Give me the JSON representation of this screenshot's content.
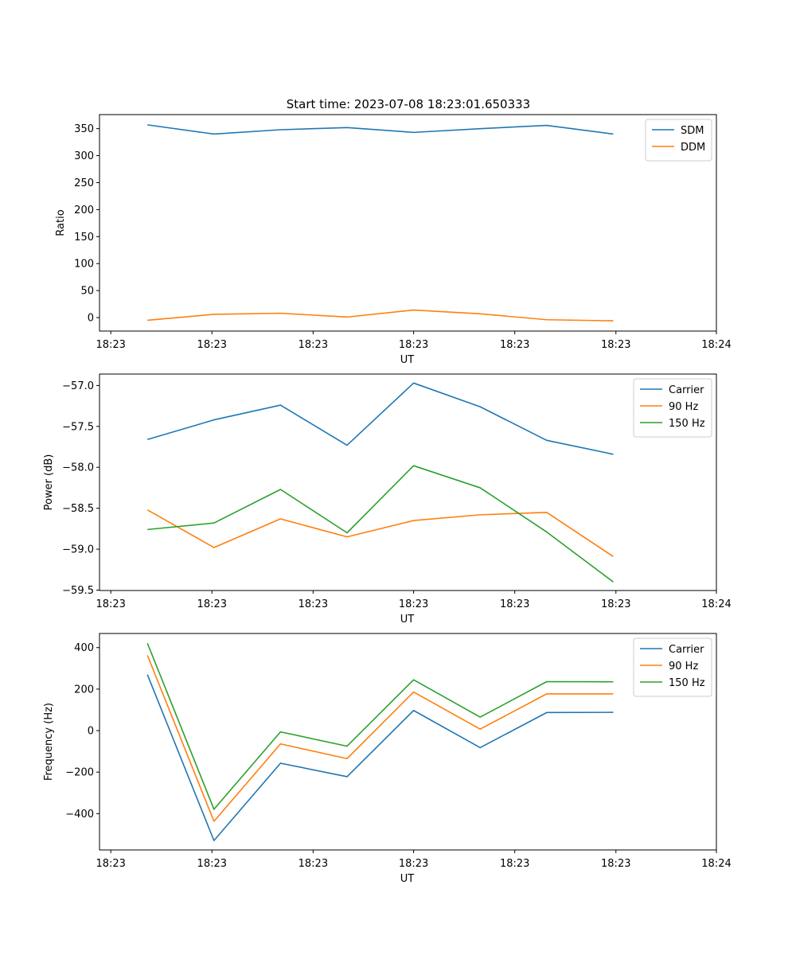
{
  "figure_title": "Start time: 2023-07-08 18:23:01.650333",
  "chart_data": [
    {
      "type": "line",
      "title": "Start time: 2023-07-08 18:23:01.650333",
      "xlabel": "UT",
      "ylabel": "Ratio",
      "x_tick_labels": [
        "18:23",
        "18:23",
        "18:23",
        "18:23",
        "18:23",
        "18:23",
        "18:24"
      ],
      "x": [
        1,
        2,
        3,
        4,
        5,
        6,
        7,
        8
      ],
      "xlim": [
        0.28,
        9.55
      ],
      "ylim": [
        -25,
        376
      ],
      "y_ticks": [
        0,
        50,
        100,
        150,
        200,
        250,
        300,
        350
      ],
      "y_tick_labels": [
        "0",
        "50",
        "100",
        "150",
        "200",
        "250",
        "300",
        "350"
      ],
      "legend_position": "top-right",
      "series": [
        {
          "name": "SDM",
          "color": "#1f77b4",
          "values": [
            357,
            340,
            348,
            352,
            343,
            350,
            356,
            340
          ]
        },
        {
          "name": "DDM",
          "color": "#ff7f0e",
          "values": [
            -5,
            6,
            8,
            1,
            14,
            7,
            -4,
            -6
          ]
        }
      ]
    },
    {
      "type": "line",
      "title": "",
      "xlabel": "UT",
      "ylabel": "Power (dB)",
      "x_tick_labels": [
        "18:23",
        "18:23",
        "18:23",
        "18:23",
        "18:23",
        "18:23",
        "18:24"
      ],
      "x": [
        1,
        2,
        3,
        4,
        5,
        6,
        7,
        8
      ],
      "xlim": [
        0.28,
        9.55
      ],
      "ylim": [
        -59.505,
        -56.86
      ],
      "y_ticks": [
        -57.0,
        -57.5,
        -58.0,
        -58.5,
        -59.0,
        -59.5
      ],
      "y_tick_labels": [
        "−57.0",
        "−57.5",
        "−58.0",
        "−58.5",
        "−59.0",
        "−59.5"
      ],
      "legend_position": "top-right",
      "series": [
        {
          "name": "Carrier",
          "color": "#1f77b4",
          "values": [
            -57.66,
            -57.42,
            -57.24,
            -57.73,
            -56.97,
            -57.26,
            -57.67,
            -57.84
          ]
        },
        {
          "name": "90 Hz",
          "color": "#ff7f0e",
          "values": [
            -58.52,
            -58.98,
            -58.63,
            -58.85,
            -58.65,
            -58.58,
            -58.55,
            -59.09
          ]
        },
        {
          "name": "150 Hz",
          "color": "#2ca02c",
          "values": [
            -58.76,
            -58.68,
            -58.27,
            -58.8,
            -57.98,
            -58.25,
            -58.79,
            -59.4
          ]
        }
      ]
    },
    {
      "type": "line",
      "title": "",
      "xlabel": "UT",
      "ylabel": "Frequency (Hz)",
      "x_tick_labels": [
        "18:23",
        "18:23",
        "18:23",
        "18:23",
        "18:23",
        "18:23",
        "18:24"
      ],
      "x": [
        1,
        2,
        3,
        4,
        5,
        6,
        7,
        8
      ],
      "xlim": [
        0.28,
        9.55
      ],
      "ylim": [
        -575,
        468
      ],
      "y_ticks": [
        400,
        200,
        0,
        -200,
        -400
      ],
      "y_tick_labels": [
        "400",
        "200",
        "0",
        "−200",
        "−400"
      ],
      "legend_position": "top-right",
      "series": [
        {
          "name": "Carrier",
          "color": "#1f77b4",
          "values": [
            270,
            -530,
            -157,
            -222,
            97,
            -82,
            87,
            88
          ]
        },
        {
          "name": "90 Hz",
          "color": "#ff7f0e",
          "values": [
            363,
            -437,
            -64,
            -135,
            186,
            7,
            177,
            177
          ]
        },
        {
          "name": "150 Hz",
          "color": "#2ca02c",
          "values": [
            421,
            -379,
            -6,
            -75,
            245,
            65,
            236,
            235
          ]
        }
      ]
    }
  ]
}
